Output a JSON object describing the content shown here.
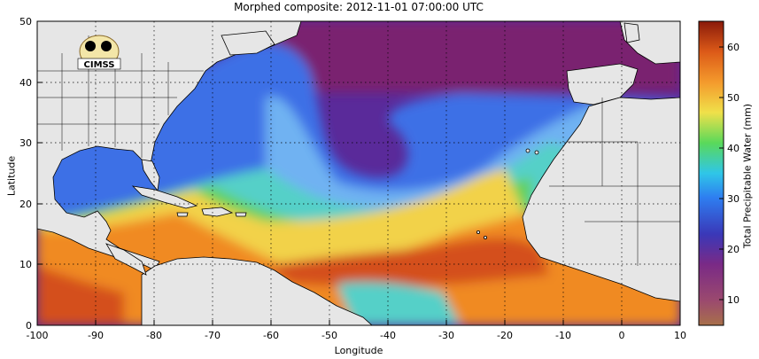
{
  "title": "Morphed composite: 2012-11-01 07:00:00 UTC",
  "logo": {
    "text": "CIMSS"
  },
  "axes": {
    "xlabel": "Longitude",
    "ylabel": "Latitude",
    "x_range": [
      -100,
      10
    ],
    "y_range": [
      0,
      50
    ],
    "x_ticks": [
      "-100",
      "-90",
      "-80",
      "-70",
      "-60",
      "-50",
      "-40",
      "-30",
      "-20",
      "-10",
      "0",
      "10"
    ],
    "y_ticks": [
      "0",
      "10",
      "20",
      "30",
      "40",
      "50"
    ],
    "grid": "dotted"
  },
  "colorbar": {
    "label": "Total Precipitable Water (mm)",
    "range": [
      5,
      65
    ],
    "ticks": [
      "10",
      "20",
      "30",
      "40",
      "50",
      "60"
    ]
  },
  "colors": {
    "land": "#e6e6e6",
    "very_dry": "#7a2070",
    "dry": "#5a2a9a",
    "mid_blue": "#3d6fe6",
    "light_blue": "#6fb2f2",
    "cyan": "#55d0c8",
    "green": "#62d15b",
    "yellow": "#f2d24a",
    "orange": "#f08a24",
    "dark_orange": "#d4501c"
  }
}
